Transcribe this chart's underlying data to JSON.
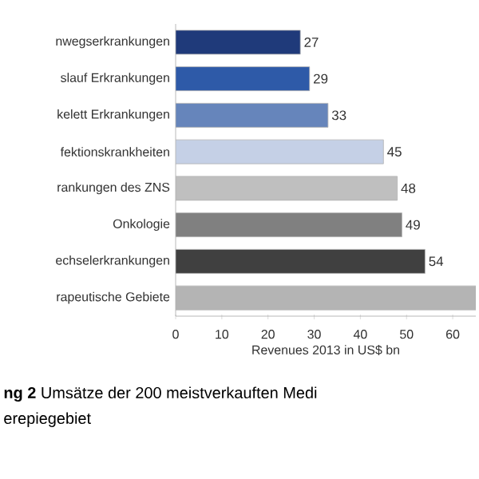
{
  "chart_data": {
    "type": "bar",
    "orientation": "horizontal",
    "categories": [
      "nwegserkrankungen",
      "slauf Erkrankungen",
      "kelett Erkrankungen",
      "fektionskrankheiten",
      "rankungen des ZNS",
      "Onkologie",
      "echselerkrankungen",
      "rapeutische Gebiete"
    ],
    "values": [
      27,
      29,
      33,
      45,
      48,
      49,
      54,
      65
    ],
    "colors": [
      "#1f3a7a",
      "#2e5aa8",
      "#6685bb",
      "#c5d0e6",
      "#bfbfbf",
      "#808080",
      "#404040",
      "#b4b4b4"
    ],
    "value_labels": [
      "27",
      "29",
      "33",
      "45",
      "48",
      "49",
      "54",
      null
    ],
    "xlim": [
      0,
      65
    ],
    "xticks": [
      0,
      10,
      20,
      30,
      40,
      50,
      60
    ],
    "xlabel": "Revenues 2013 in US$ bn",
    "annotations": [
      "**ng 2** Umsätze der 200 meistverkauften Medi",
      "erepiegebiet"
    ],
    "grid": false
  }
}
